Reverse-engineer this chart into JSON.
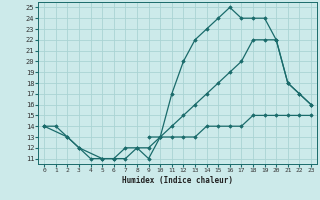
{
  "xlabel": "Humidex (Indice chaleur)",
  "bg_color": "#cceaea",
  "grid_color": "#aad4d4",
  "line_color": "#1a6b6b",
  "xlim": [
    -0.5,
    23.5
  ],
  "ylim": [
    10.5,
    25.5
  ],
  "xticks": [
    0,
    1,
    2,
    3,
    4,
    5,
    6,
    7,
    8,
    9,
    10,
    11,
    12,
    13,
    14,
    15,
    16,
    17,
    18,
    19,
    20,
    21,
    22,
    23
  ],
  "yticks": [
    11,
    12,
    13,
    14,
    15,
    16,
    17,
    18,
    19,
    20,
    21,
    22,
    23,
    24,
    25
  ],
  "line1_x": [
    0,
    1,
    2,
    3,
    4,
    5,
    6,
    7,
    8,
    9,
    10,
    11,
    12,
    13,
    14,
    15,
    16,
    17,
    18,
    19,
    20,
    21,
    22,
    23
  ],
  "line1_y": [
    14,
    14,
    13,
    12,
    11,
    11,
    11,
    12,
    12,
    11,
    13,
    13,
    13,
    13,
    14,
    14,
    14,
    14,
    15,
    15,
    15,
    15,
    15,
    15
  ],
  "line2_x": [
    0,
    2,
    3,
    5,
    6,
    7,
    8,
    9,
    10,
    11,
    12,
    13,
    14,
    15,
    16,
    17,
    18,
    19,
    20,
    21,
    22,
    23
  ],
  "line2_y": [
    14,
    13,
    12,
    11,
    11,
    11,
    12,
    12,
    13,
    17,
    20,
    22,
    23,
    24,
    25,
    24,
    24,
    24,
    22,
    18,
    17,
    16
  ],
  "line3_x": [
    9,
    10,
    11,
    12,
    13,
    14,
    15,
    16,
    17,
    18,
    19,
    20,
    21,
    22,
    23
  ],
  "line3_y": [
    13,
    13,
    14,
    15,
    16,
    17,
    18,
    19,
    20,
    22,
    22,
    22,
    18,
    17,
    16
  ]
}
